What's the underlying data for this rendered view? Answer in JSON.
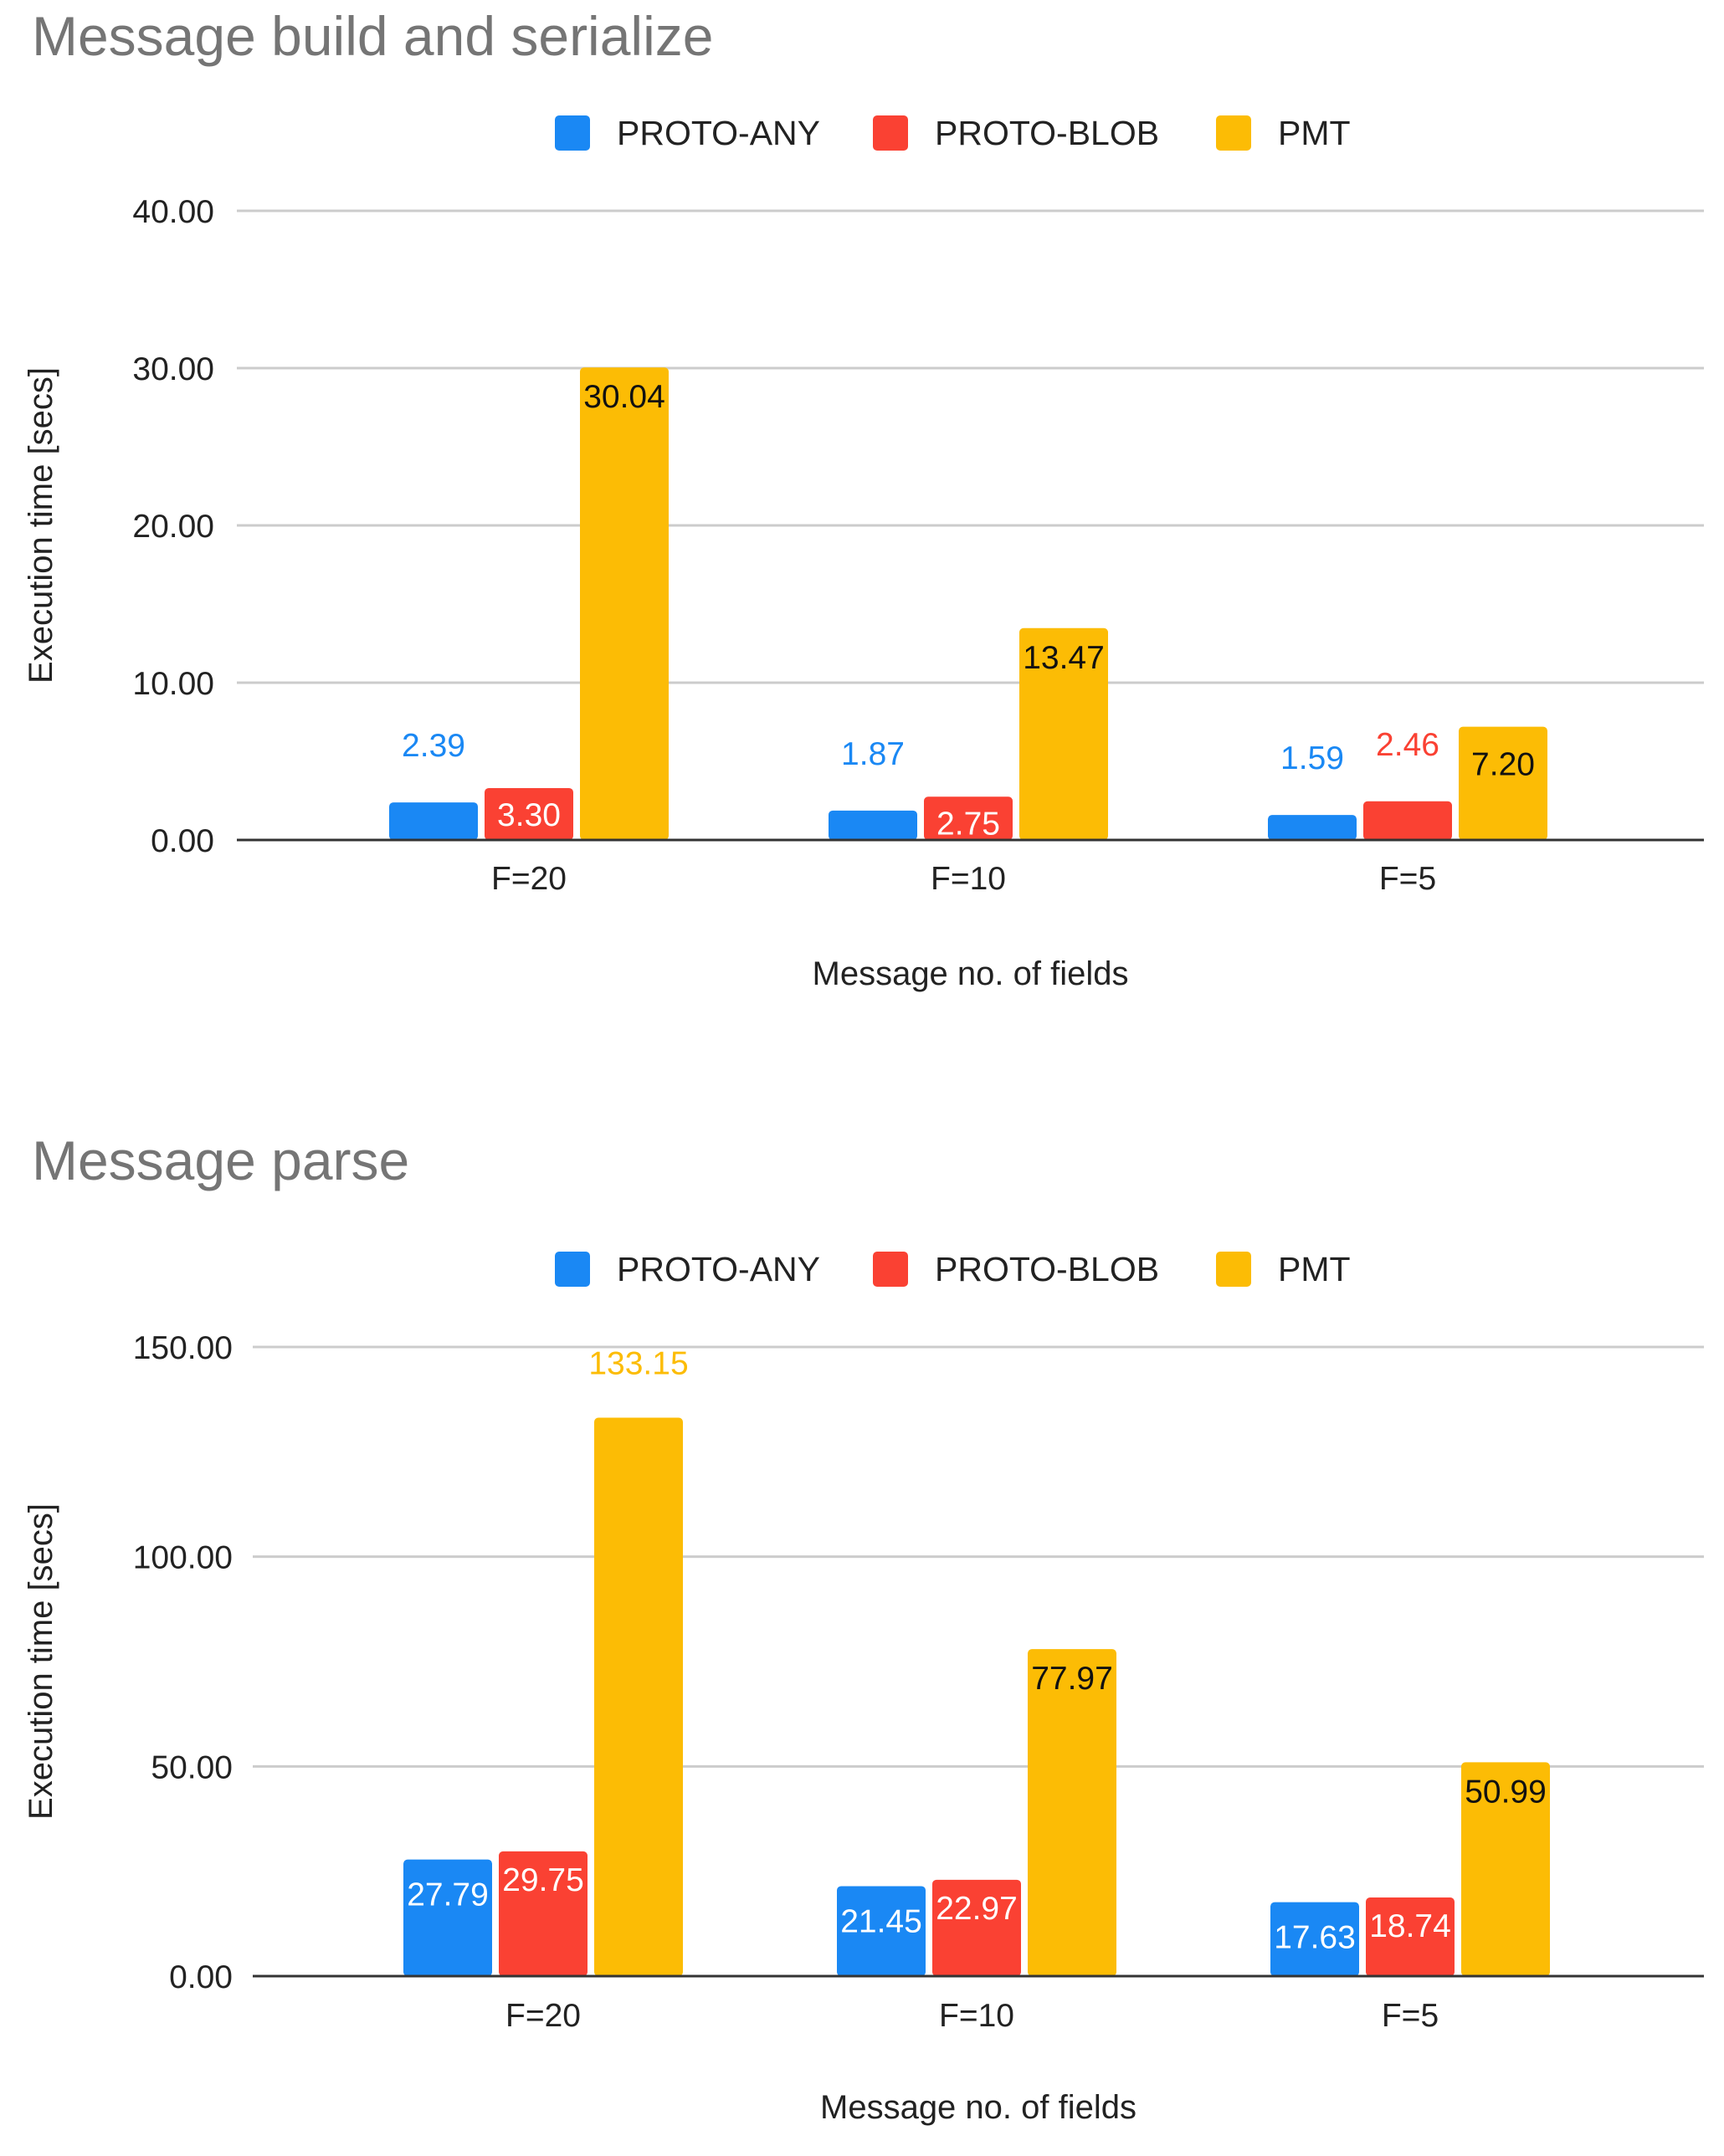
{
  "chart_data": [
    {
      "type": "bar",
      "title": "Message build and serialize",
      "xlabel": "Message no. of fields",
      "ylabel": "Execution time [secs]",
      "categories": [
        "F=20",
        "F=10",
        "F=5"
      ],
      "series": [
        {
          "name": "PROTO-ANY",
          "color": "#1a88f4",
          "values": [
            2.39,
            1.87,
            1.59
          ],
          "labels": [
            "2.39",
            "1.87",
            "1.59"
          ]
        },
        {
          "name": "PROTO-BLOB",
          "color": "#fa4133",
          "values": [
            3.3,
            2.75,
            2.46
          ],
          "labels": [
            "3.30",
            "2.75",
            "2.46"
          ]
        },
        {
          "name": "PMT",
          "color": "#fcbc05",
          "values": [
            30.04,
            13.47,
            7.2
          ],
          "labels": [
            "30.04",
            "13.47",
            "7.20"
          ]
        }
      ],
      "ylim": [
        0,
        40
      ],
      "yticks": [
        "0.00",
        "10.00",
        "20.00",
        "30.00",
        "40.00"
      ],
      "grid": true,
      "legend": "top-center"
    },
    {
      "type": "bar",
      "title": "Message parse",
      "xlabel": "Message no. of fields",
      "ylabel": "Execution time [secs]",
      "categories": [
        "F=20",
        "F=10",
        "F=5"
      ],
      "series": [
        {
          "name": "PROTO-ANY",
          "color": "#1a88f4",
          "values": [
            27.79,
            21.45,
            17.63
          ],
          "labels": [
            "27.79",
            "21.45",
            "17.63"
          ]
        },
        {
          "name": "PROTO-BLOB",
          "color": "#fa4133",
          "values": [
            29.75,
            22.97,
            18.74
          ],
          "labels": [
            "29.75",
            "22.97",
            "18.74"
          ]
        },
        {
          "name": "PMT",
          "color": "#fcbc05",
          "values": [
            133.15,
            77.97,
            50.99
          ],
          "labels": [
            "133.15",
            "77.97",
            "50.99"
          ]
        }
      ],
      "ylim": [
        0,
        150
      ],
      "yticks": [
        "0.00",
        "50.00",
        "100.00",
        "150.00"
      ],
      "grid": true,
      "legend": "top-center"
    }
  ]
}
